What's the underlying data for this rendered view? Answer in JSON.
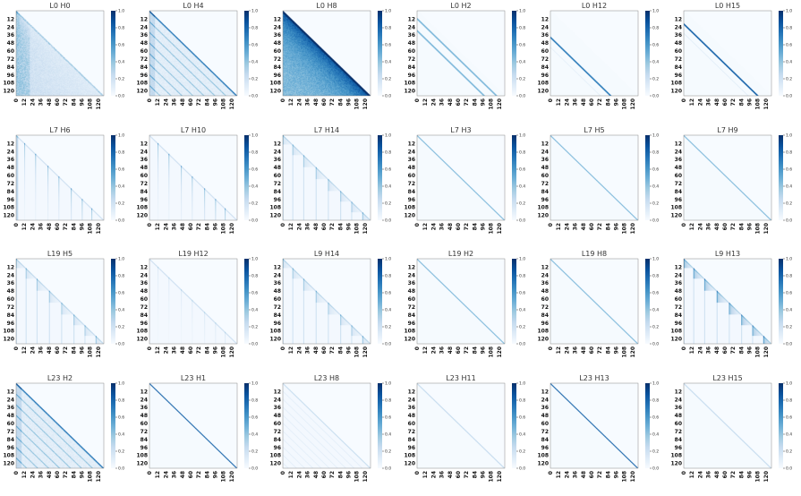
{
  "figure": {
    "panels": [
      {
        "title": "L0 H0",
        "pattern": "dense"
      },
      {
        "title": "L0 H4",
        "pattern": "dense-stripes"
      },
      {
        "title": "L0 H8",
        "pattern": "dense-strong"
      },
      {
        "title": "L0 H2",
        "pattern": "offset-diagonals"
      },
      {
        "title": "L0 H12",
        "pattern": "offset-diagonal"
      },
      {
        "title": "L0 H15",
        "pattern": "offset-diagonal-strong"
      },
      {
        "title": "L7 H6",
        "pattern": "columns"
      },
      {
        "title": "L7 H10",
        "pattern": "columns-sparse"
      },
      {
        "title": "L7 H14",
        "pattern": "columns-blocks"
      },
      {
        "title": "L7 H3",
        "pattern": "diagonal"
      },
      {
        "title": "L7 H5",
        "pattern": "diagonal"
      },
      {
        "title": "L7 H9",
        "pattern": "diagonal"
      },
      {
        "title": "L19 H5",
        "pattern": "blocks"
      },
      {
        "title": "L19 H12",
        "pattern": "columns-faint"
      },
      {
        "title": "L9 H14",
        "pattern": "columns-blocks"
      },
      {
        "title": "L19 H2",
        "pattern": "diagonal"
      },
      {
        "title": "L19 H8",
        "pattern": "diagonal"
      },
      {
        "title": "L9 H13",
        "pattern": "blocks-strong"
      },
      {
        "title": "L23 H2",
        "pattern": "dense-stripes"
      },
      {
        "title": "L23 H1",
        "pattern": "diagonal-strong"
      },
      {
        "title": "L23 H8",
        "pattern": "faint-stripes"
      },
      {
        "title": "L23 H11",
        "pattern": "diagonal-faint"
      },
      {
        "title": "L23 H13",
        "pattern": "diagonal-strong"
      },
      {
        "title": "L23 H15",
        "pattern": "diagonal-faint"
      }
    ]
  },
  "chart_data": {
    "type": "heatmap",
    "size": 128,
    "ticks": [
      "0",
      "12",
      "24",
      "36",
      "48",
      "60",
      "72",
      "84",
      "96",
      "108",
      "120"
    ],
    "colorbar": {
      "range": [
        0.0,
        1.0
      ],
      "ticks": [
        "0.0",
        "0.2",
        "0.4",
        "0.6",
        "0.8",
        "1.0"
      ],
      "colormap": "Blues",
      "color_low": "#f7fbff",
      "color_high": "#08306b"
    }
  }
}
